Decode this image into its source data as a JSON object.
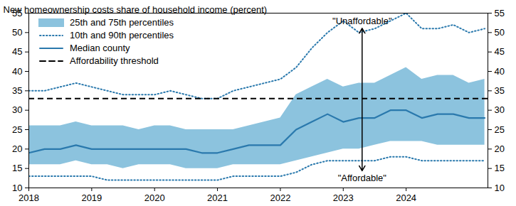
{
  "chart_data": {
    "type": "band_line",
    "ylabel": "New homeownership costs share of household income (percent)",
    "x": [
      2018,
      2018.25,
      2018.5,
      2018.75,
      2019,
      2019.25,
      2019.5,
      2019.75,
      2020,
      2020.25,
      2020.5,
      2020.75,
      2021,
      2021.25,
      2021.5,
      2021.75,
      2022,
      2022.25,
      2022.5,
      2022.75,
      2023,
      2023.25,
      2023.5,
      2023.75,
      2024,
      2024.25,
      2024.5,
      2024.75,
      2025,
      2025.25
    ],
    "xlim": [
      2018,
      2025.3
    ],
    "xticks": [
      2018,
      2019,
      2020,
      2021,
      2022,
      2023,
      2024
    ],
    "ylim": [
      10,
      55
    ],
    "yticks": [
      10,
      15,
      20,
      25,
      30,
      35,
      40,
      45,
      50,
      55
    ],
    "grid": false,
    "legend": "top-left",
    "series": [
      {
        "name": "25th and 75th percentiles",
        "type": "band",
        "color": "#8cc3de",
        "lower": [
          16,
          16,
          16,
          17,
          16,
          16,
          15,
          16,
          16,
          16,
          15,
          15,
          15,
          16,
          16,
          16,
          16,
          17,
          18,
          19,
          20,
          20,
          21,
          22,
          22,
          22,
          21,
          21,
          21,
          21
        ],
        "upper": [
          26,
          26,
          26,
          27,
          26,
          26,
          26,
          25,
          26,
          26,
          25,
          25,
          25,
          25,
          26,
          27,
          28,
          34,
          36,
          38,
          36,
          37,
          37,
          39,
          41,
          38,
          39,
          39,
          37,
          38
        ]
      },
      {
        "name": "10th and 90th percentiles",
        "type": "line",
        "line_style": "dotted",
        "color": "#2a79ad",
        "lower": [
          13,
          13,
          13,
          13,
          13,
          12,
          12,
          12,
          12,
          12,
          12,
          12,
          12,
          13,
          13,
          13,
          13,
          14,
          16,
          17,
          17,
          17,
          17,
          18,
          18,
          17,
          17,
          17,
          17,
          17
        ],
        "upper": [
          35,
          35,
          36,
          37,
          36,
          35,
          34,
          34,
          34,
          35,
          34,
          33,
          33,
          35,
          36,
          37,
          38,
          41,
          46,
          50,
          53,
          50,
          51,
          53,
          55,
          51,
          51,
          52,
          50,
          51
        ]
      },
      {
        "name": "Median county",
        "type": "line",
        "line_style": "solid",
        "color": "#2a79ad",
        "values": [
          19,
          20,
          20,
          21,
          20,
          20,
          20,
          20,
          20,
          20,
          20,
          19,
          19,
          20,
          21,
          21,
          21,
          25,
          27,
          29,
          27,
          28,
          28,
          30,
          30,
          28,
          29,
          29,
          28,
          28
        ]
      },
      {
        "name": "Affordability threshold",
        "type": "rule",
        "line_style": "dashed",
        "color": "#000000",
        "value": 33
      }
    ],
    "annotations": [
      {
        "text": "\"Unaffordable\"",
        "x": 2023.3,
        "y": 53
      },
      {
        "text": "\"Affordable\"",
        "x": 2023.3,
        "y": 12.5
      }
    ]
  }
}
